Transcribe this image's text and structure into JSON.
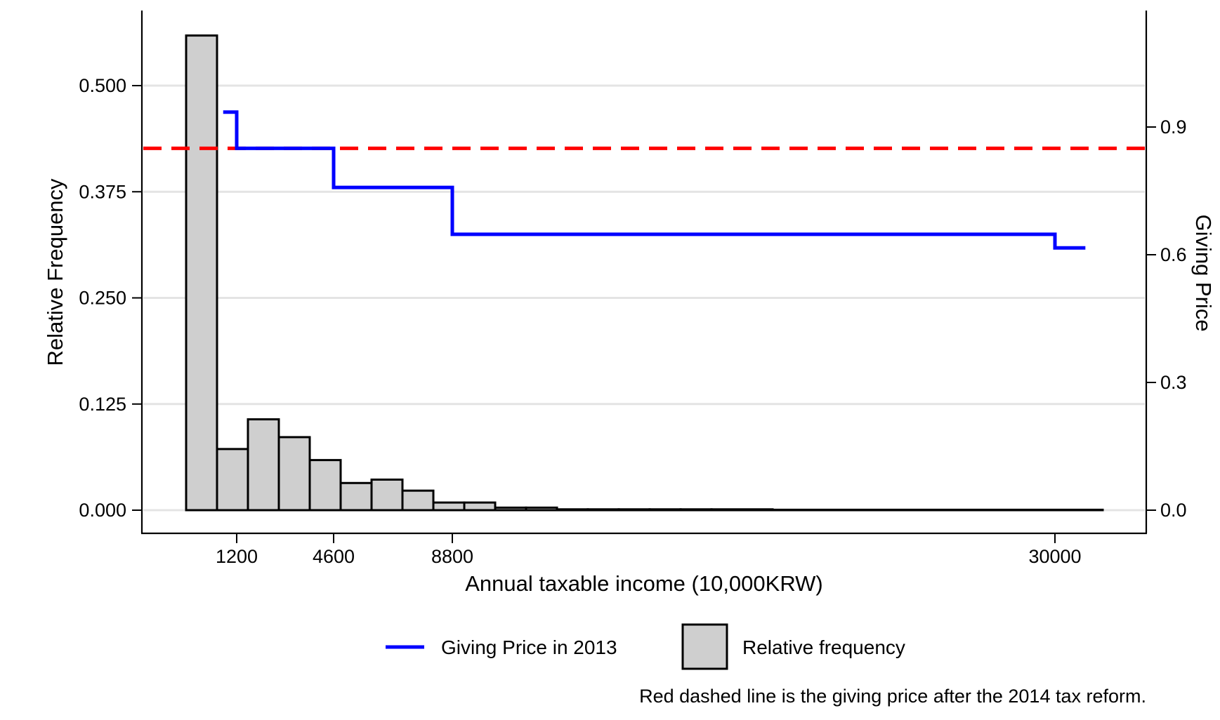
{
  "chart_data": {
    "type": "bar",
    "xlabel": "Annual taxable income (10,000KRW)",
    "ylabel_left": "Relative Frequency",
    "ylabel_right": "Giving Price",
    "x_ticks": [
      1200,
      4600,
      8800,
      30000
    ],
    "x_tick_labels": [
      "1200",
      "4600",
      "8800",
      "30000"
    ],
    "xlim": [
      -2000,
      33000
    ],
    "ylim_left": [
      -0.025,
      0.56
    ],
    "ylim_right": [
      -0.05,
      1.12
    ],
    "left_ticks": [
      "0.000",
      "0.125",
      "0.250",
      "0.375",
      "0.500"
    ],
    "right_ticks": [
      "0.0",
      "0.3",
      "0.6",
      "0.9"
    ],
    "grid": "horizontal",
    "histogram": {
      "name": "Relative frequency",
      "bin_edges": [
        -200,
        880,
        1960,
        3040,
        4120,
        5200,
        6280,
        7360,
        8440,
        9520,
        10600,
        11680,
        12760,
        13840,
        14920,
        16000,
        17080,
        18080,
        19160,
        31600
      ],
      "values": [
        0.559,
        0.072,
        0.107,
        0.086,
        0.059,
        0.032,
        0.036,
        0.023,
        0.009,
        0.009,
        0.003,
        0.003,
        0.001,
        0.001,
        0.001,
        0.001,
        0.001,
        0.001,
        0.0005
      ]
    },
    "series": [
      {
        "name": "Giving Price in 2013",
        "color": "#0000ff",
        "step_x": [
          400,
          1200,
          1200,
          4600,
          4600,
          8800,
          8800,
          30000,
          30000,
          31000
        ],
        "step_y": [
          0.935,
          0.935,
          0.85,
          0.85,
          0.758,
          0.758,
          0.648,
          0.648,
          0.616,
          0.616
        ]
      }
    ],
    "reference_line": {
      "y_right": 0.85,
      "color": "#ff0000",
      "style": "dashed"
    },
    "legend": {
      "placement": "bottom",
      "entries": [
        {
          "label": "Giving Price in 2013",
          "kind": "line",
          "color": "#0000ff"
        },
        {
          "label": "Relative frequency",
          "kind": "box",
          "color": "#cfcfcf"
        }
      ]
    },
    "note": "Red dashed line is the giving price after the 2014 tax reform."
  }
}
